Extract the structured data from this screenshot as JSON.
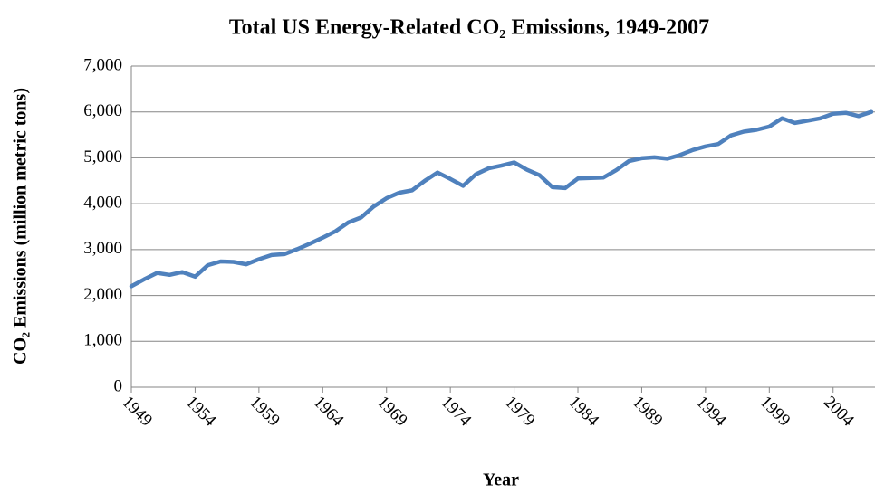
{
  "chart_data": {
    "type": "line",
    "title": "Total US Energy-Related CO₂ Emissions, 1949-2007",
    "x_label": "Year",
    "y_label": "CO₂ Emissions (million metric tons)",
    "x": [
      1949,
      1950,
      1951,
      1952,
      1953,
      1954,
      1955,
      1956,
      1957,
      1958,
      1959,
      1960,
      1961,
      1962,
      1963,
      1964,
      1965,
      1966,
      1967,
      1968,
      1969,
      1970,
      1971,
      1972,
      1973,
      1974,
      1975,
      1976,
      1977,
      1978,
      1979,
      1980,
      1981,
      1982,
      1983,
      1984,
      1985,
      1986,
      1987,
      1988,
      1989,
      1990,
      1991,
      1992,
      1993,
      1994,
      1995,
      1996,
      1997,
      1998,
      1999,
      2000,
      2001,
      2002,
      2003,
      2004,
      2005,
      2006,
      2007
    ],
    "values": [
      2200,
      2350,
      2490,
      2450,
      2510,
      2410,
      2660,
      2740,
      2730,
      2680,
      2790,
      2880,
      2900,
      3010,
      3130,
      3260,
      3400,
      3590,
      3700,
      3940,
      4120,
      4240,
      4290,
      4500,
      4680,
      4540,
      4390,
      4640,
      4770,
      4830,
      4900,
      4740,
      4620,
      4360,
      4340,
      4550,
      4560,
      4570,
      4730,
      4930,
      4990,
      5010,
      4980,
      5060,
      5170,
      5250,
      5300,
      5490,
      5570,
      5610,
      5680,
      5860,
      5760,
      5810,
      5860,
      5960,
      5980,
      5910,
      6000
    ],
    "color": "#4f81bd",
    "xlim": [
      1949,
      2007
    ],
    "xticks": [
      1949,
      1954,
      1959,
      1964,
      1969,
      1974,
      1979,
      1984,
      1989,
      1994,
      1999,
      2004
    ],
    "ylim": [
      0,
      7000
    ],
    "yticks": [
      0,
      {
        "value": 1000,
        "label": "1,000"
      },
      {
        "value": 2000,
        "label": "2,000"
      },
      {
        "value": 3000,
        "label": "3,000"
      },
      {
        "value": 4000,
        "label": "4,000"
      },
      {
        "value": 5000,
        "label": "5,000"
      },
      {
        "value": 6000,
        "label": "6,000"
      },
      {
        "value": 7000,
        "label": "7,000"
      }
    ],
    "grid": true
  }
}
